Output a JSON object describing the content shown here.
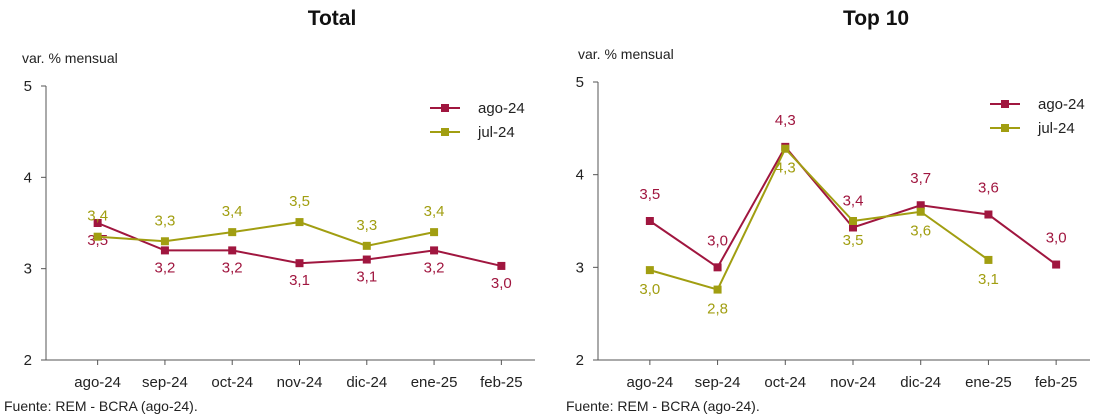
{
  "chart_data": [
    {
      "type": "line",
      "title": "Total",
      "ylabel": "var. % mensual",
      "ylim": [
        2,
        5
      ],
      "yticks": [
        "2",
        "3",
        "4",
        "5"
      ],
      "categories": [
        "ago-24",
        "sep-24",
        "oct-24",
        "nov-24",
        "dic-24",
        "ene-25",
        "feb-25"
      ],
      "legend_position": "top-right",
      "series": [
        {
          "name": "ago-24",
          "color": "#A0163F",
          "values": [
            3.5,
            3.2,
            3.2,
            3.06,
            3.1,
            3.2,
            3.03
          ],
          "labels": [
            "3,5",
            "3,2",
            "3,2",
            "3,1",
            "3,1",
            "3,2",
            "3,0"
          ]
        },
        {
          "name": "jul-24",
          "color": "#A19E11",
          "values": [
            3.35,
            3.3,
            3.4,
            3.51,
            3.25,
            3.4,
            null
          ],
          "labels": [
            "3,4",
            "3,3",
            "3,4",
            "3,5",
            "3,3",
            "3,4",
            ""
          ]
        }
      ],
      "source": "Fuente: REM - BCRA (ago-24)."
    },
    {
      "type": "line",
      "title": "Top 10",
      "ylabel": "var. % mensual",
      "ylim": [
        2,
        5
      ],
      "yticks": [
        "2",
        "3",
        "4",
        "5"
      ],
      "categories": [
        "ago-24",
        "sep-24",
        "oct-24",
        "nov-24",
        "dic-24",
        "ene-25",
        "feb-25"
      ],
      "legend_position": "top-right",
      "series": [
        {
          "name": "ago-24",
          "color": "#A0163F",
          "values": [
            3.5,
            3.0,
            4.3,
            3.43,
            3.67,
            3.57,
            3.03
          ],
          "labels": [
            "3,5",
            "3,0",
            "4,3",
            "3,4",
            "3,7",
            "3,6",
            "3,0"
          ]
        },
        {
          "name": "jul-24",
          "color": "#A19E11",
          "values": [
            2.97,
            2.76,
            4.28,
            3.5,
            3.6,
            3.08,
            null
          ],
          "labels": [
            "3,0",
            "2,8",
            "4,3",
            "3,5",
            "3,6",
            "3,1",
            ""
          ]
        }
      ],
      "source": "Fuente: REM - BCRA (ago-24)."
    }
  ]
}
